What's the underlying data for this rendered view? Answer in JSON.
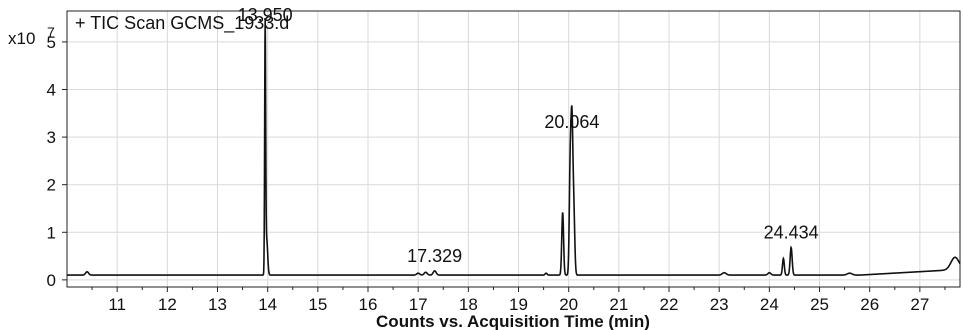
{
  "chart_data": {
    "type": "line",
    "title": "+ TIC Scan GCMS_1933.d",
    "xlabel": "Counts vs. Acquisition Time (min)",
    "ylabel": "",
    "y_multiplier": "x10",
    "y_exponent": "7",
    "xlim": [
      10.0,
      27.8
    ],
    "ylim": [
      -0.15,
      5.65
    ],
    "x_ticks": [
      11,
      12,
      13,
      14,
      15,
      16,
      17,
      18,
      19,
      20,
      21,
      22,
      23,
      24,
      25,
      26,
      27
    ],
    "y_ticks": [
      0,
      1,
      2,
      3,
      4,
      5
    ],
    "grid": true,
    "baseline": 0.1,
    "peaks": [
      {
        "rt": 10.4,
        "height": 0.17,
        "width": 0.03
      },
      {
        "rt": 13.95,
        "height": 5.25,
        "width": 0.01
      },
      {
        "rt": 13.98,
        "height": 0.85,
        "width": 0.02
      },
      {
        "rt": 17.0,
        "height": 0.14,
        "width": 0.03
      },
      {
        "rt": 17.15,
        "height": 0.16,
        "width": 0.03
      },
      {
        "rt": 17.329,
        "height": 0.19,
        "width": 0.03
      },
      {
        "rt": 19.55,
        "height": 0.14,
        "width": 0.02
      },
      {
        "rt": 19.88,
        "height": 1.42,
        "width": 0.018
      },
      {
        "rt": 20.03,
        "height": 2.3,
        "width": 0.018
      },
      {
        "rt": 20.064,
        "height": 3.0,
        "width": 0.018
      },
      {
        "rt": 20.1,
        "height": 1.5,
        "width": 0.02
      },
      {
        "rt": 23.1,
        "height": 0.15,
        "width": 0.04
      },
      {
        "rt": 24.0,
        "height": 0.15,
        "width": 0.03
      },
      {
        "rt": 24.28,
        "height": 0.45,
        "width": 0.018
      },
      {
        "rt": 24.434,
        "height": 0.68,
        "width": 0.02
      },
      {
        "rt": 25.6,
        "height": 0.14,
        "width": 0.05
      },
      {
        "rt": 27.7,
        "height": 0.36,
        "width": 0.08
      }
    ],
    "annotations": [
      {
        "label": "13.950",
        "x": 13.95,
        "y": 5.25
      },
      {
        "label": "17.329",
        "x": 17.329,
        "y": 0.19
      },
      {
        "label": "20.064",
        "x": 20.064,
        "y": 3.0
      },
      {
        "label": "24.434",
        "x": 24.434,
        "y": 0.68
      }
    ],
    "colors": {
      "trace": "#111111",
      "grid": "#d9d9d9",
      "axis": "#222222",
      "background": "#ffffff"
    }
  }
}
